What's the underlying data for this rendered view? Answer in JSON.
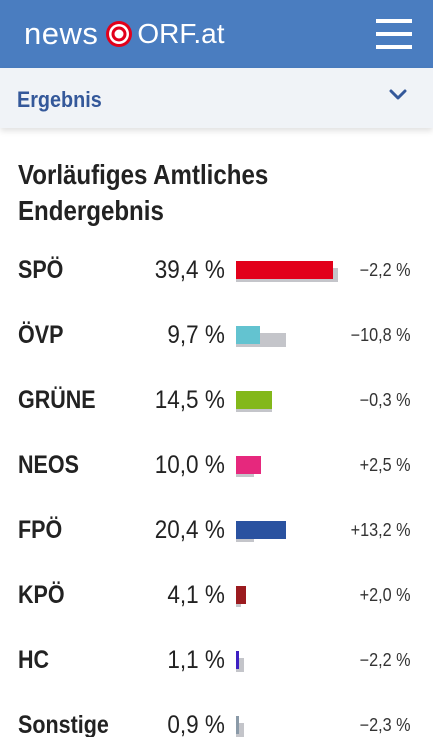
{
  "header": {
    "logo_text": "news",
    "logo_brand": "ORF.at",
    "logo_icon": "orf-ring-icon",
    "menu_icon": "hamburger-menu-icon",
    "background": "#4a7dc0"
  },
  "section": {
    "title": "Ergebnis",
    "toggle_icon": "chevron-down-icon"
  },
  "results": {
    "title": "Vorläufiges Amtliches Endergebnis",
    "rows": [
      {
        "party": "SPÖ",
        "percent": "39,4 %",
        "diff": "−2,2 %",
        "value": 39.4,
        "previous": 41.6,
        "color": "#e2001a"
      },
      {
        "party": "ÖVP",
        "percent": "9,7 %",
        "diff": "−10,8 %",
        "value": 9.7,
        "previous": 20.5,
        "color": "#63c3d0"
      },
      {
        "party": "GRÜNE",
        "percent": "14,5 %",
        "diff": "−0,3 %",
        "value": 14.5,
        "previous": 14.8,
        "color": "#83b81a"
      },
      {
        "party": "NEOS",
        "percent": "10,0 %",
        "diff": "+2,5 %",
        "value": 10.0,
        "previous": 7.5,
        "color": "#e6287d"
      },
      {
        "party": "FPÖ",
        "percent": "20,4 %",
        "diff": "+13,2 %",
        "value": 20.4,
        "previous": 7.2,
        "color": "#2a52a0"
      },
      {
        "party": "KPÖ",
        "percent": "4,1 %",
        "diff": "+2,0 %",
        "value": 4.1,
        "previous": 2.1,
        "color": "#9b1b1f"
      },
      {
        "party": "HC",
        "percent": "1,1 %",
        "diff": "−2,2 %",
        "value": 1.1,
        "previous": 3.3,
        "color": "#3d1fc2"
      },
      {
        "party": "Sonstige",
        "percent": "0,9 %",
        "diff": "−2,3 %",
        "value": 0.9,
        "previous": 3.2,
        "color": "#8a9aa8"
      }
    ]
  }
}
